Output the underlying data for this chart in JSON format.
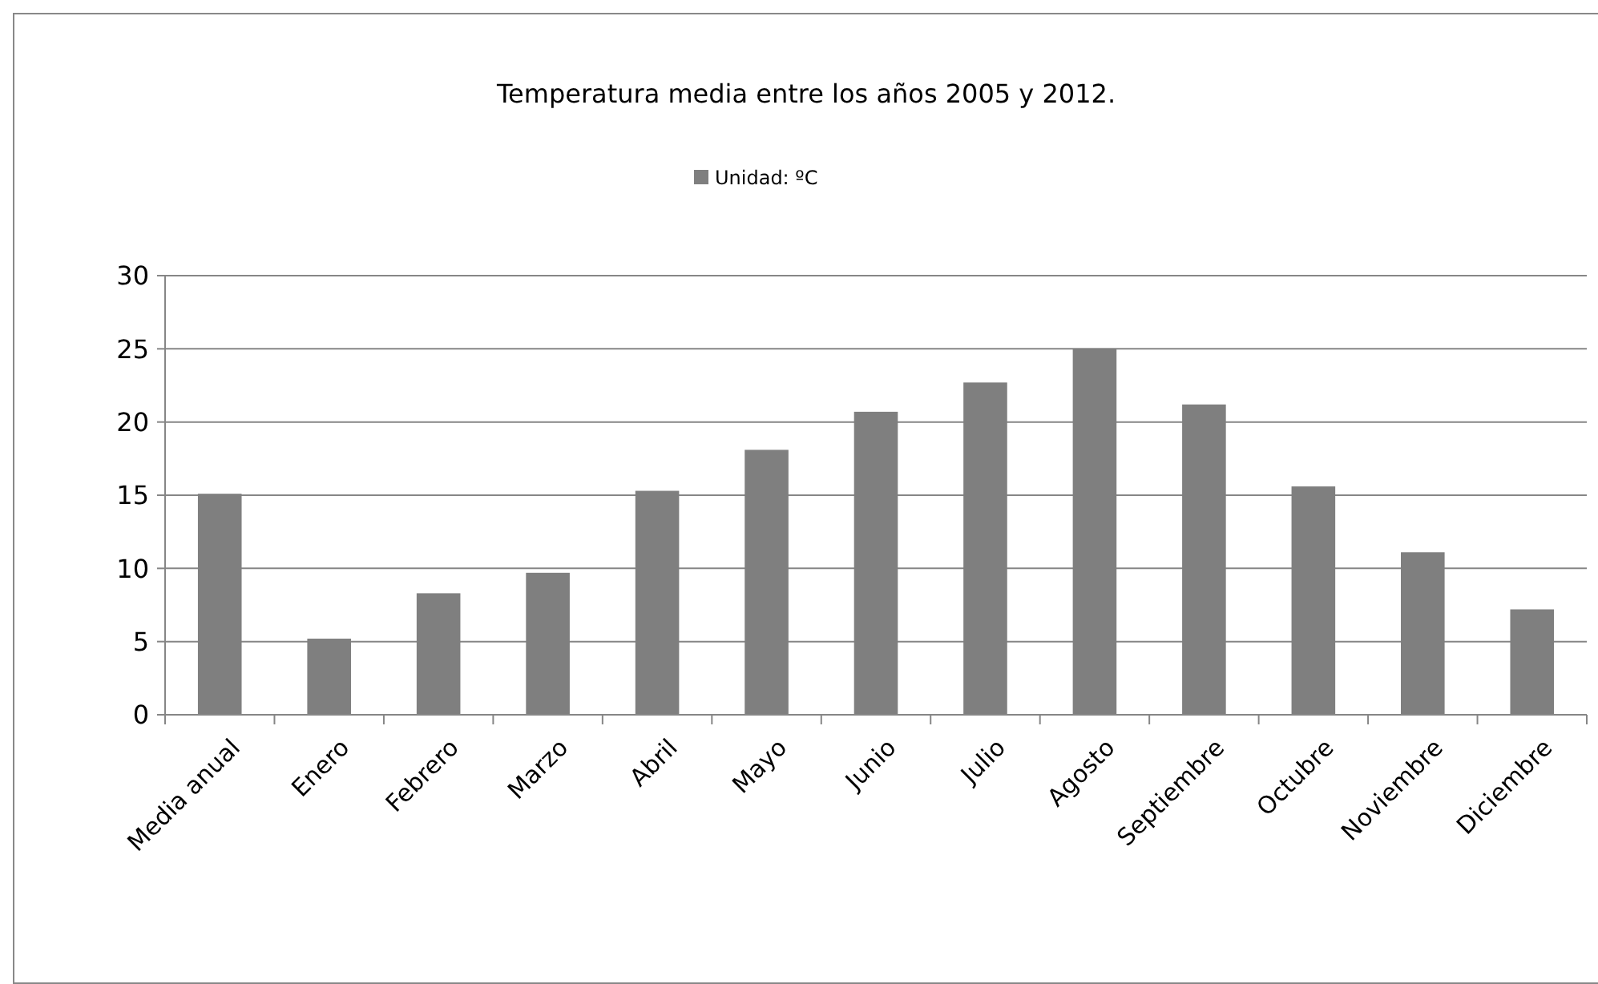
{
  "chart_data": {
    "type": "bar",
    "title": "Temperatura media entre los años 2005 y 2012.",
    "categories": [
      "Media anual",
      "Enero",
      "Febrero",
      "Marzo",
      "Abril",
      "Mayo",
      "Junio",
      "Julio",
      "Agosto",
      "Septiembre",
      "Octubre",
      "Noviembre",
      "Diciembre"
    ],
    "series": [
      {
        "name": "Unidad: ºC",
        "color": "#7f7f7f",
        "values": [
          15.1,
          5.2,
          8.3,
          9.7,
          15.3,
          18.1,
          20.7,
          22.7,
          25.0,
          21.2,
          15.6,
          11.1,
          7.2
        ]
      }
    ],
    "ylim": [
      0,
      30
    ],
    "yticks": [
      0,
      5,
      10,
      15,
      20,
      25,
      30
    ],
    "grid": "y",
    "legend": "top"
  }
}
